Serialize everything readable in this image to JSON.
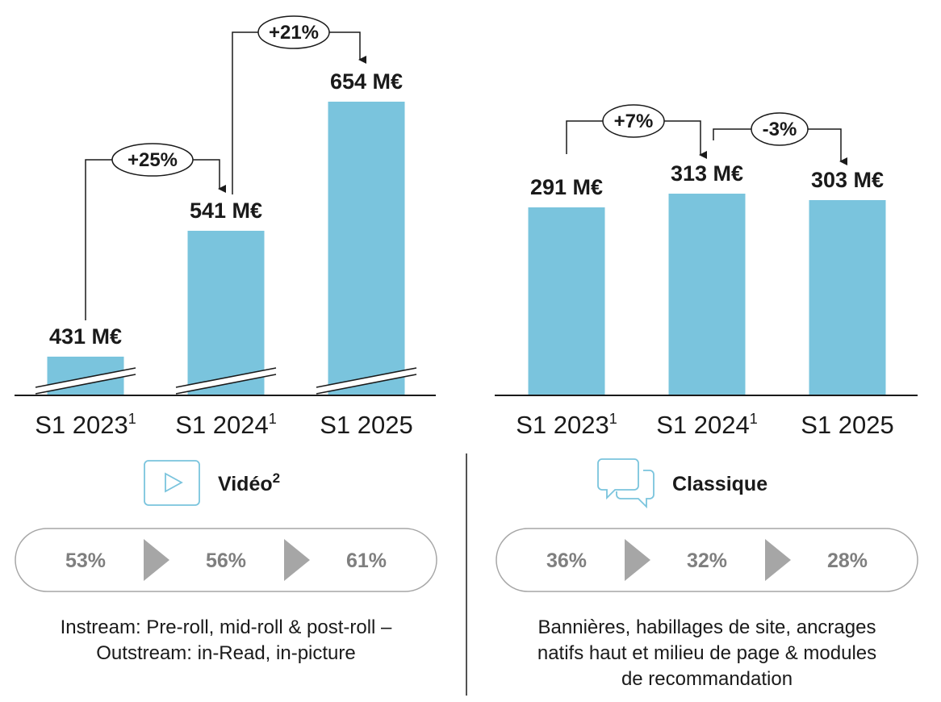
{
  "colors": {
    "bar": "#7ac4dd",
    "arrow_share": "#a6a6a6",
    "share_text": "#7f7f7f",
    "icon": "#7ac4dd"
  },
  "chart_data": [
    {
      "type": "bar",
      "categories": [
        "S1 2023",
        "S1 2024",
        "S1 2025"
      ],
      "category_superscripts": [
        "1",
        "1",
        ""
      ],
      "values": [
        431,
        541,
        654
      ],
      "value_labels": [
        "431 M€",
        "541 M€",
        "654 M€"
      ],
      "axis_broken": true,
      "growth": [
        {
          "from": 0,
          "to": 1,
          "label": "+25%"
        },
        {
          "from": 1,
          "to": 2,
          "label": "+21%"
        }
      ],
      "section_title": "Vidéo",
      "section_title_sup": "2",
      "icon": "play-icon",
      "shares": [
        "53%",
        "56%",
        "61%"
      ],
      "description": [
        "Instream: Pre-roll, mid-roll & post-roll –",
        "Outstream: in-Read, in-picture"
      ]
    },
    {
      "type": "bar",
      "categories": [
        "S1 2023",
        "S1 2024",
        "S1 2025"
      ],
      "category_superscripts": [
        "1",
        "1",
        ""
      ],
      "values": [
        291,
        313,
        303
      ],
      "value_labels": [
        "291 M€",
        "313 M€",
        "303 M€"
      ],
      "axis_broken": false,
      "growth": [
        {
          "from": 0,
          "to": 1,
          "label": "+7%"
        },
        {
          "from": 1,
          "to": 2,
          "label": "-3%"
        }
      ],
      "section_title": "Classique",
      "section_title_sup": "",
      "icon": "chat-bubbles-icon",
      "shares": [
        "36%",
        "32%",
        "28%"
      ],
      "description": [
        "Bannières, habillages de site, ancrages",
        "natifs haut et milieu de page & modules",
        "de recommandation"
      ]
    }
  ]
}
